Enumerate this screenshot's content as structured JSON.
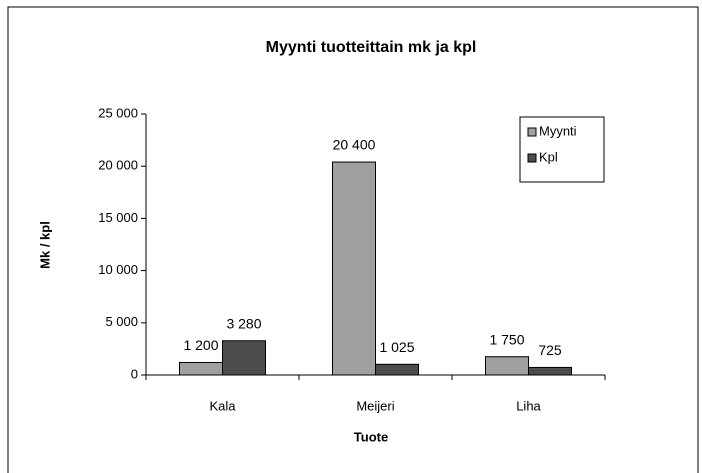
{
  "chart_data": {
    "type": "bar",
    "title": "Myynti tuotteittain mk ja kpl",
    "x_label": "Tuote",
    "y_label": "Mk / kpl",
    "categories": [
      "Kala",
      "Meijeri",
      "Liha"
    ],
    "series": [
      {
        "name": "Myynti",
        "color": "#a0a0a0",
        "values": [
          1200,
          20400,
          1750
        ],
        "value_labels": [
          "1 200",
          "20 400",
          "1 750"
        ]
      },
      {
        "name": "Kpl",
        "color": "#4d4d4d",
        "values": [
          3280,
          1025,
          725
        ],
        "value_labels": [
          "3 280",
          "1 025",
          "725"
        ]
      }
    ],
    "ylim": [
      0,
      25000
    ],
    "yticks": [
      {
        "value": 0,
        "label": "0"
      },
      {
        "value": 5000,
        "label": "5 000"
      },
      {
        "value": 10000,
        "label": "10 000"
      },
      {
        "value": 15000,
        "label": "15 000"
      },
      {
        "value": 20000,
        "label": "20 000"
      },
      {
        "value": 25000,
        "label": "25 000"
      }
    ],
    "legend": "right"
  }
}
